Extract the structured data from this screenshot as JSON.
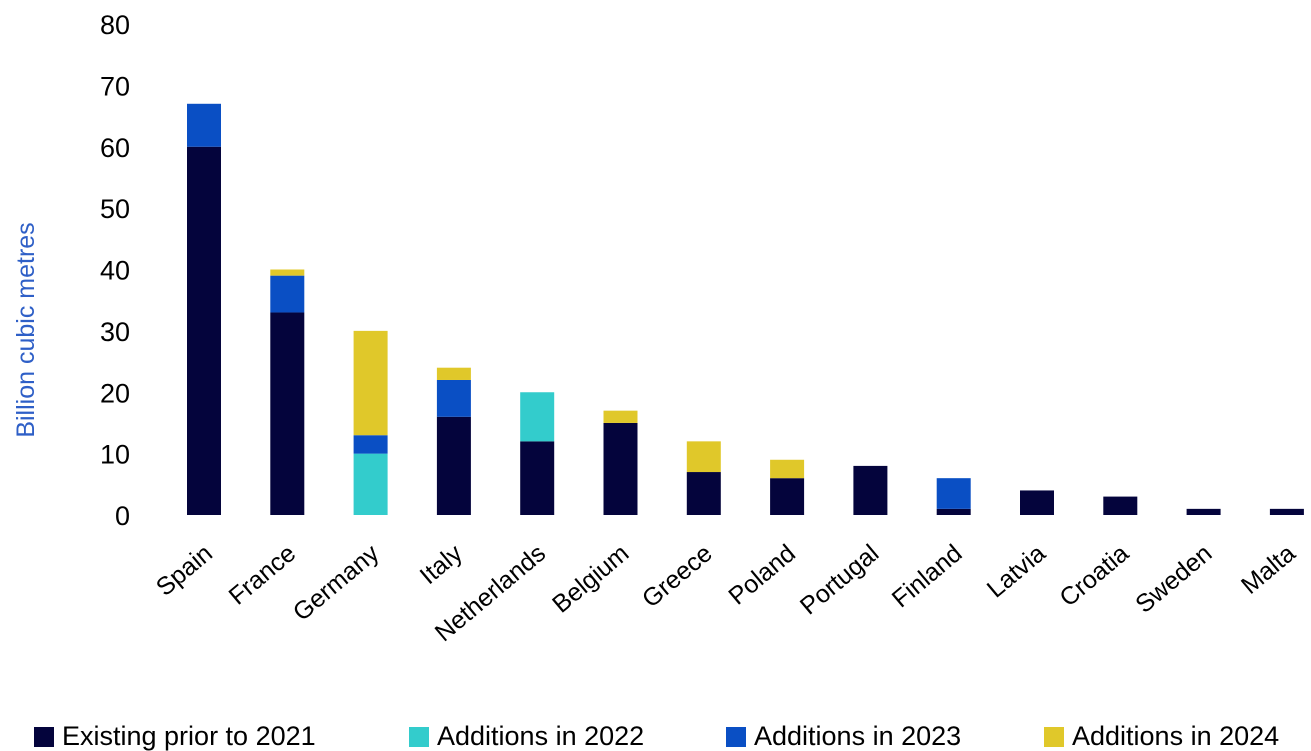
{
  "chart_data": {
    "type": "bar",
    "stacked": true,
    "title": "",
    "xlabel": "",
    "ylabel": "Billion cubic metres",
    "ylim": [
      0,
      80
    ],
    "yticks": [
      "0",
      "10",
      "20",
      "30",
      "40",
      "50",
      "60",
      "70",
      "80"
    ],
    "grid": false,
    "legend_position": "bottom",
    "categories": [
      "Spain",
      "France",
      "Germany",
      "Italy",
      "Netherlands",
      "Belgium",
      "Greece",
      "Poland",
      "Portugal",
      "Finland",
      "Latvia",
      "Croatia",
      "Sweden",
      "Malta"
    ],
    "series": [
      {
        "name": "Existing prior to 2021",
        "color": "#04043c",
        "values": [
          60,
          33,
          0,
          16,
          12,
          15,
          7,
          6,
          8,
          1,
          4,
          3,
          1,
          1
        ]
      },
      {
        "name": "Additions in 2022",
        "color": "#33cccc",
        "values": [
          0,
          0,
          10,
          0,
          8,
          0,
          0,
          0,
          0,
          0,
          0,
          0,
          0,
          0
        ]
      },
      {
        "name": "Additions in 2023",
        "color": "#0a4fc4",
        "values": [
          7,
          6,
          3,
          6,
          0,
          0,
          0,
          0,
          0,
          5,
          0,
          0,
          0,
          0
        ]
      },
      {
        "name": "Additions in 2024",
        "color": "#e0c82a",
        "values": [
          0,
          1,
          17,
          2,
          0,
          2,
          5,
          3,
          0,
          0,
          0,
          0,
          0,
          0
        ]
      }
    ],
    "ylabel_color": "#2e5fc7"
  }
}
